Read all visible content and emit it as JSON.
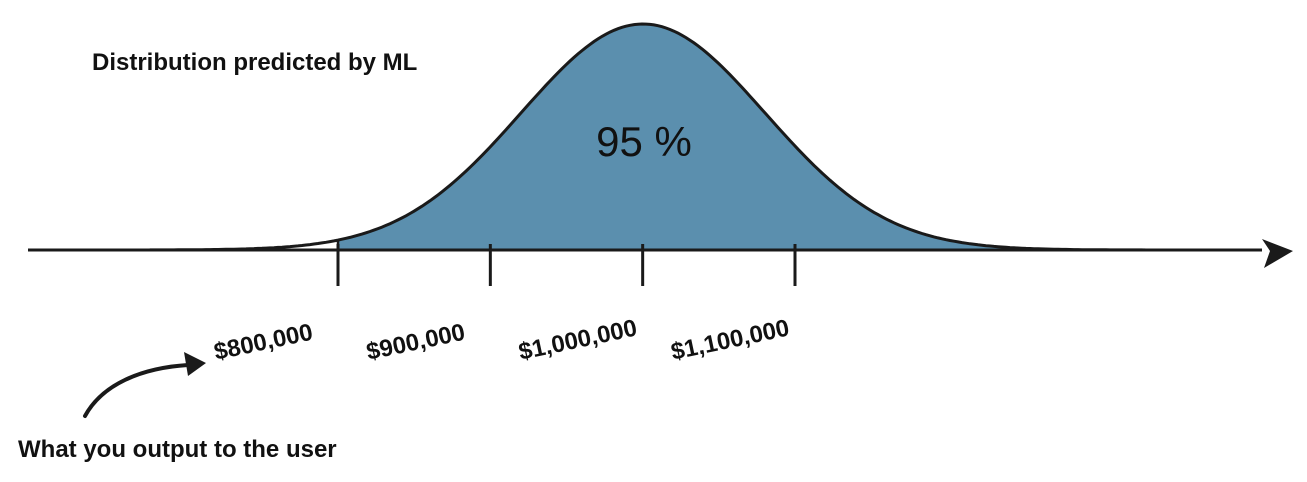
{
  "title": "Distribution predicted by ML",
  "shaded_label": "95 %",
  "ticks": [
    {
      "label": "$800,000",
      "value": 800000
    },
    {
      "label": "$900,000",
      "value": 900000
    },
    {
      "label": "$1,000,000",
      "value": 1000000
    },
    {
      "label": "$1,100,000",
      "value": 1100000
    }
  ],
  "annotation": "What you output to the user",
  "colors": {
    "fill": "#5b8fae",
    "stroke": "#1a1a1a",
    "text": "#111111"
  }
}
